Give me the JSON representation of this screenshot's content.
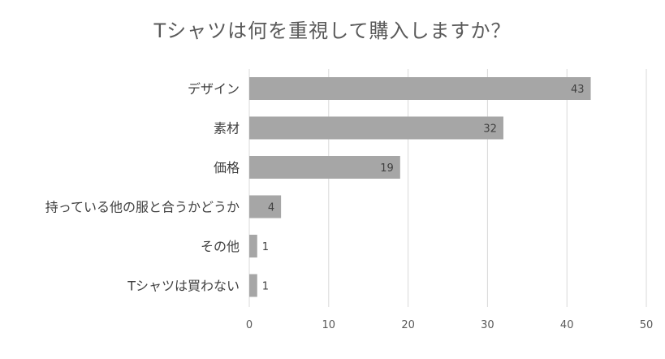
{
  "chart_data": {
    "type": "bar",
    "orientation": "horizontal",
    "title": "Tシャツは何を重視して購入しますか？",
    "categories": [
      "デザイン",
      "素材",
      "価格",
      "持っている他の服と合うかどうか",
      "その他",
      "Tシャツは買わない"
    ],
    "values": [
      43,
      32,
      19,
      4,
      1,
      1
    ],
    "xlim": [
      0,
      50
    ],
    "xticks": [
      0,
      10,
      20,
      30,
      40,
      50
    ],
    "grid": true,
    "legend": "none",
    "bar_color": "#a6a6a6",
    "grid_color": "#d9d9d9"
  }
}
